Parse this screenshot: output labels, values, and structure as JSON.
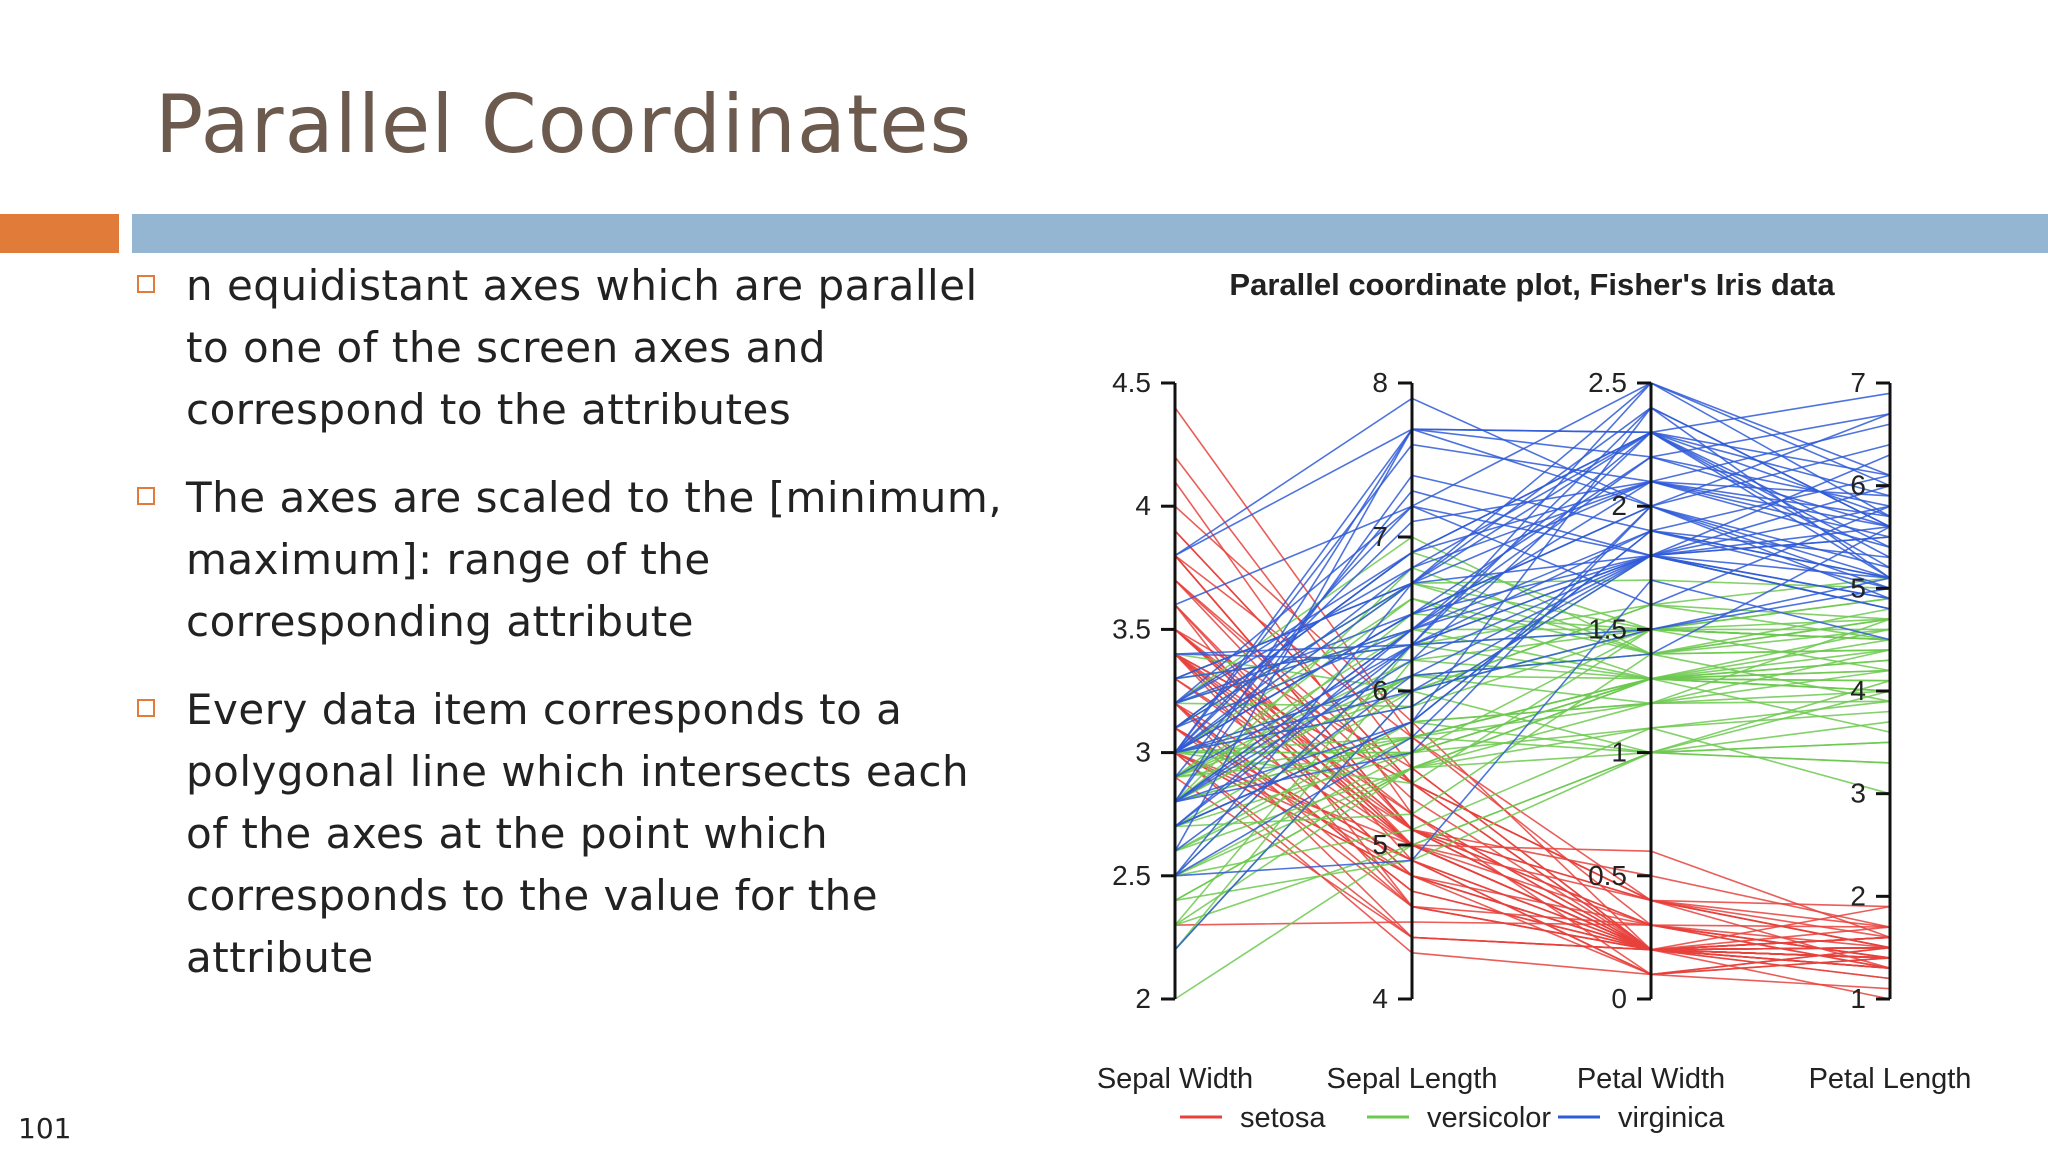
{
  "slide": {
    "title": "Parallel Coordinates",
    "page_number": "101",
    "bullets": [
      {
        "text": "n equidistant axes which are parallel to one of the screen axes and correspond to the attributes"
      },
      {
        "text": "The axes are scaled to the [minimum, maximum]: range of the corresponding attribute"
      },
      {
        "text": "Every data item corresponds to a polygonal line which intersects each of the axes at the point which corresponds to the value for the attribute"
      }
    ],
    "colors": {
      "title": "#6b5a4d",
      "accent_orange": "#e07b39",
      "accent_blue": "#94b6d2"
    }
  },
  "chart_data": {
    "type": "parallel_coordinates",
    "title": "Parallel coordinate plot, Fisher's Iris data",
    "axes": [
      {
        "label": "Sepal Width",
        "range": [
          2,
          4.5
        ],
        "ticks": [
          2,
          2.5,
          3,
          3.5,
          4,
          4.5
        ],
        "tick_labels": [
          "2",
          "2.5",
          "3",
          "3.5",
          "4",
          "4.5"
        ],
        "tick_side": "left"
      },
      {
        "label": "Sepal Length",
        "range": [
          4,
          8
        ],
        "ticks": [
          4,
          5,
          6,
          7,
          8
        ],
        "tick_labels": [
          "4",
          "5",
          "6",
          "7",
          "8"
        ],
        "tick_side": "left"
      },
      {
        "label": "Petal Width",
        "range": [
          0,
          2.5
        ],
        "ticks": [
          0,
          0.5,
          1,
          1.5,
          2,
          2.5
        ],
        "tick_labels": [
          "0",
          "0.5",
          "1",
          "1.5",
          "2",
          "2.5"
        ],
        "tick_side": "left"
      },
      {
        "label": "Petal Length",
        "range": [
          1,
          7
        ],
        "ticks": [
          1,
          2,
          3,
          4,
          5,
          6,
          7
        ],
        "tick_labels": [
          "1",
          "2",
          "3",
          "4",
          "5",
          "6",
          "7"
        ],
        "tick_side": "left"
      }
    ],
    "series": [
      {
        "name": "setosa",
        "color": "#e8413c",
        "records": [
          [
            3.5,
            5.1,
            0.2,
            1.4
          ],
          [
            3.0,
            4.9,
            0.2,
            1.4
          ],
          [
            3.2,
            4.7,
            0.2,
            1.3
          ],
          [
            3.1,
            4.6,
            0.2,
            1.5
          ],
          [
            3.6,
            5.0,
            0.2,
            1.4
          ],
          [
            3.9,
            5.4,
            0.4,
            1.7
          ],
          [
            3.4,
            4.6,
            0.3,
            1.4
          ],
          [
            3.4,
            5.0,
            0.2,
            1.5
          ],
          [
            2.9,
            4.4,
            0.2,
            1.4
          ],
          [
            3.1,
            4.9,
            0.1,
            1.5
          ],
          [
            3.7,
            5.4,
            0.2,
            1.5
          ],
          [
            3.4,
            4.8,
            0.2,
            1.6
          ],
          [
            3.0,
            4.8,
            0.1,
            1.4
          ],
          [
            3.0,
            4.3,
            0.1,
            1.1
          ],
          [
            4.0,
            5.8,
            0.2,
            1.2
          ],
          [
            4.4,
            5.7,
            0.4,
            1.5
          ],
          [
            3.9,
            5.4,
            0.4,
            1.3
          ],
          [
            3.5,
            5.1,
            0.3,
            1.4
          ],
          [
            3.8,
            5.7,
            0.3,
            1.7
          ],
          [
            3.8,
            5.1,
            0.3,
            1.5
          ],
          [
            3.4,
            5.4,
            0.2,
            1.7
          ],
          [
            3.7,
            5.1,
            0.4,
            1.5
          ],
          [
            3.6,
            4.6,
            0.2,
            1.0
          ],
          [
            3.3,
            5.1,
            0.5,
            1.7
          ],
          [
            3.4,
            4.8,
            0.2,
            1.9
          ],
          [
            3.0,
            5.0,
            0.2,
            1.6
          ],
          [
            3.4,
            5.0,
            0.4,
            1.6
          ],
          [
            3.5,
            5.2,
            0.2,
            1.5
          ],
          [
            3.4,
            5.2,
            0.2,
            1.4
          ],
          [
            3.2,
            4.7,
            0.2,
            1.6
          ],
          [
            3.1,
            4.8,
            0.2,
            1.6
          ],
          [
            3.4,
            5.4,
            0.4,
            1.5
          ],
          [
            4.1,
            5.2,
            0.1,
            1.5
          ],
          [
            4.2,
            5.5,
            0.2,
            1.4
          ],
          [
            3.1,
            4.9,
            0.2,
            1.5
          ],
          [
            3.2,
            5.0,
            0.2,
            1.2
          ],
          [
            3.5,
            5.5,
            0.2,
            1.3
          ],
          [
            3.6,
            4.9,
            0.1,
            1.4
          ],
          [
            3.0,
            4.4,
            0.2,
            1.3
          ],
          [
            3.4,
            5.1,
            0.2,
            1.5
          ],
          [
            3.5,
            5.0,
            0.3,
            1.3
          ],
          [
            2.3,
            4.5,
            0.3,
            1.3
          ],
          [
            3.2,
            4.4,
            0.2,
            1.3
          ],
          [
            3.5,
            5.0,
            0.6,
            1.6
          ],
          [
            3.8,
            5.1,
            0.4,
            1.9
          ],
          [
            3.0,
            4.8,
            0.3,
            1.4
          ],
          [
            3.8,
            5.1,
            0.2,
            1.6
          ],
          [
            3.2,
            4.6,
            0.2,
            1.4
          ],
          [
            3.7,
            5.3,
            0.2,
            1.5
          ],
          [
            3.3,
            5.0,
            0.2,
            1.4
          ]
        ]
      },
      {
        "name": "versicolor",
        "color": "#6cc94f",
        "records": [
          [
            3.2,
            7.0,
            1.4,
            4.7
          ],
          [
            3.2,
            6.4,
            1.5,
            4.5
          ],
          [
            3.1,
            6.9,
            1.5,
            4.9
          ],
          [
            2.3,
            5.5,
            1.3,
            4.0
          ],
          [
            2.8,
            6.5,
            1.5,
            4.6
          ],
          [
            2.8,
            5.7,
            1.3,
            4.5
          ],
          [
            3.3,
            6.3,
            1.6,
            4.7
          ],
          [
            2.4,
            4.9,
            1.0,
            3.3
          ],
          [
            2.9,
            6.6,
            1.3,
            4.6
          ],
          [
            2.7,
            5.2,
            1.4,
            3.9
          ],
          [
            2.0,
            5.0,
            1.0,
            3.5
          ],
          [
            3.0,
            5.9,
            1.5,
            4.2
          ],
          [
            2.2,
            6.0,
            1.0,
            4.0
          ],
          [
            2.9,
            6.1,
            1.4,
            4.7
          ],
          [
            2.9,
            5.6,
            1.3,
            3.6
          ],
          [
            3.1,
            6.7,
            1.4,
            4.4
          ],
          [
            3.0,
            5.6,
            1.5,
            4.5
          ],
          [
            2.7,
            5.8,
            1.0,
            4.1
          ],
          [
            2.2,
            6.2,
            1.5,
            4.5
          ],
          [
            2.5,
            5.6,
            1.1,
            3.9
          ],
          [
            3.2,
            5.9,
            1.8,
            4.8
          ],
          [
            2.8,
            6.1,
            1.3,
            4.0
          ],
          [
            2.5,
            6.3,
            1.5,
            4.9
          ],
          [
            2.8,
            6.1,
            1.2,
            4.7
          ],
          [
            2.9,
            6.4,
            1.3,
            4.3
          ],
          [
            3.0,
            6.6,
            1.4,
            4.4
          ],
          [
            2.8,
            6.8,
            1.4,
            4.8
          ],
          [
            3.0,
            6.7,
            1.7,
            5.0
          ],
          [
            2.9,
            6.0,
            1.5,
            4.5
          ],
          [
            2.6,
            5.7,
            1.0,
            3.5
          ],
          [
            2.4,
            5.5,
            1.1,
            3.8
          ],
          [
            2.4,
            5.5,
            1.0,
            3.7
          ],
          [
            2.7,
            5.8,
            1.2,
            3.9
          ],
          [
            2.7,
            6.0,
            1.6,
            5.1
          ],
          [
            3.0,
            5.4,
            1.5,
            4.5
          ],
          [
            3.4,
            6.0,
            1.6,
            4.5
          ],
          [
            3.1,
            6.7,
            1.5,
            4.7
          ],
          [
            2.3,
            6.3,
            1.3,
            4.4
          ],
          [
            3.0,
            5.6,
            1.3,
            4.1
          ],
          [
            2.5,
            5.5,
            1.3,
            4.0
          ],
          [
            2.6,
            5.5,
            1.2,
            4.4
          ],
          [
            3.0,
            6.1,
            1.4,
            4.6
          ],
          [
            2.6,
            5.8,
            1.2,
            4.0
          ],
          [
            2.3,
            5.0,
            1.0,
            3.3
          ],
          [
            2.7,
            5.6,
            1.3,
            4.2
          ],
          [
            3.0,
            5.7,
            1.2,
            4.2
          ],
          [
            2.9,
            5.7,
            1.3,
            4.2
          ],
          [
            2.9,
            6.2,
            1.3,
            4.3
          ],
          [
            2.5,
            5.1,
            1.1,
            3.0
          ],
          [
            2.8,
            5.7,
            1.3,
            4.1
          ]
        ]
      },
      {
        "name": "virginica",
        "color": "#2f5bd8",
        "records": [
          [
            3.3,
            6.3,
            2.5,
            6.0
          ],
          [
            2.7,
            5.8,
            1.9,
            5.1
          ],
          [
            3.0,
            7.1,
            2.1,
            5.9
          ],
          [
            2.9,
            6.3,
            1.8,
            5.6
          ],
          [
            3.0,
            6.5,
            2.2,
            5.8
          ],
          [
            3.0,
            7.6,
            2.1,
            6.6
          ],
          [
            2.5,
            4.9,
            1.7,
            4.5
          ],
          [
            2.9,
            7.3,
            1.8,
            6.3
          ],
          [
            2.5,
            6.7,
            1.8,
            5.8
          ],
          [
            3.6,
            7.2,
            2.5,
            6.1
          ],
          [
            3.2,
            6.5,
            2.0,
            5.1
          ],
          [
            2.7,
            6.4,
            1.9,
            5.3
          ],
          [
            3.0,
            6.8,
            2.1,
            5.5
          ],
          [
            2.5,
            5.7,
            2.0,
            5.0
          ],
          [
            2.8,
            5.8,
            2.4,
            5.1
          ],
          [
            3.2,
            6.4,
            2.3,
            5.3
          ],
          [
            3.0,
            6.5,
            1.8,
            5.5
          ],
          [
            3.8,
            7.7,
            2.2,
            6.7
          ],
          [
            2.6,
            7.7,
            2.3,
            6.9
          ],
          [
            2.2,
            6.0,
            1.5,
            5.0
          ],
          [
            3.2,
            6.9,
            2.3,
            5.7
          ],
          [
            2.8,
            5.6,
            2.0,
            4.9
          ],
          [
            2.8,
            7.7,
            2.0,
            6.7
          ],
          [
            2.7,
            6.3,
            1.8,
            4.9
          ],
          [
            3.3,
            6.7,
            2.1,
            5.7
          ],
          [
            3.2,
            7.2,
            1.8,
            6.0
          ],
          [
            2.8,
            6.2,
            1.8,
            4.8
          ],
          [
            3.0,
            6.1,
            1.8,
            4.9
          ],
          [
            2.8,
            6.4,
            2.1,
            5.6
          ],
          [
            3.0,
            7.2,
            1.6,
            5.8
          ],
          [
            2.8,
            7.4,
            1.9,
            6.1
          ],
          [
            3.8,
            7.9,
            2.0,
            6.4
          ],
          [
            2.8,
            6.4,
            2.2,
            5.6
          ],
          [
            2.8,
            6.3,
            1.5,
            5.1
          ],
          [
            2.6,
            6.1,
            1.4,
            5.6
          ],
          [
            3.0,
            7.7,
            2.3,
            6.1
          ],
          [
            3.4,
            6.3,
            2.4,
            5.6
          ],
          [
            3.1,
            6.4,
            1.8,
            5.5
          ],
          [
            3.0,
            6.0,
            1.8,
            4.8
          ],
          [
            3.1,
            6.9,
            2.1,
            5.4
          ],
          [
            3.1,
            6.7,
            2.4,
            5.6
          ],
          [
            3.1,
            6.9,
            2.3,
            5.1
          ],
          [
            2.7,
            5.8,
            1.9,
            5.1
          ],
          [
            3.2,
            6.8,
            2.3,
            5.9
          ],
          [
            3.3,
            6.7,
            2.5,
            5.7
          ],
          [
            3.0,
            6.7,
            2.3,
            5.2
          ],
          [
            2.5,
            6.3,
            1.9,
            5.0
          ],
          [
            3.0,
            6.5,
            2.0,
            5.2
          ],
          [
            3.4,
            6.2,
            2.3,
            5.4
          ],
          [
            3.0,
            5.9,
            1.8,
            5.1
          ]
        ]
      }
    ],
    "legend": {
      "placement": "bottom",
      "entries": [
        "setosa",
        "versicolor",
        "virginica"
      ]
    },
    "grid": false
  }
}
